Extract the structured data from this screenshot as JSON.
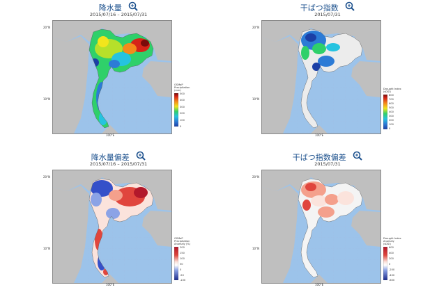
{
  "panels": [
    {
      "id": "rainfall",
      "title": "降水量",
      "date": "2015/07/16 – 2015/07/31",
      "colorbar": {
        "title": [
          "GSMaP",
          "Precipitation",
          "(mm)"
        ],
        "ticks": [
          "0",
          "100",
          "200",
          "300",
          "400",
          "500"
        ],
        "colors": [
          "#1b3fa6",
          "#2c7bd6",
          "#25c3e0",
          "#2fd06a",
          "#b6e02a",
          "#f2e51c",
          "#f58a1a",
          "#d62418",
          "#7a0b0b"
        ]
      },
      "lat_labels": [
        "20°N",
        "10°N"
      ],
      "lon_label": "100°E"
    },
    {
      "id": "drought",
      "title": "干ばつ指数",
      "date": "2015/07/31",
      "colorbar": {
        "title": [
          "Drought Index",
          "(sDSI)"
        ],
        "ticks": [
          "0",
          "100",
          "200",
          "300",
          "400",
          "500",
          "600",
          "700",
          "800"
        ],
        "colors": [
          "#1b3fa6",
          "#2c7bd6",
          "#25c3e0",
          "#2fd06a",
          "#b6e02a",
          "#f2e51c",
          "#f58a1a",
          "#d62418",
          "#7a0b0b"
        ]
      },
      "lat_labels": [
        "20°N",
        "10°N"
      ],
      "lon_label": "100°E"
    },
    {
      "id": "rainfall-anomaly",
      "title": "降水量偏差",
      "date": "2015/07/16 – 2015/07/31",
      "colorbar": {
        "title": [
          "GSMaP",
          "Precipitation",
          "Anomaly (%)"
        ],
        "ticks": [
          "200",
          "150",
          "100",
          "50",
          "0",
          "-50",
          "-100"
        ],
        "colors": [
          "#b2182b",
          "#e0453d",
          "#f4a08c",
          "#fbe3dc",
          "#ffffff",
          "#d6def5",
          "#8ca3e6",
          "#3550c9",
          "#1a2a8c"
        ]
      },
      "lat_labels": [
        "20°N",
        "10°N"
      ],
      "lon_label": "100°E"
    },
    {
      "id": "drought-anomaly",
      "title": "干ばつ指数偏差",
      "date": "2015/07/31",
      "colorbar": {
        "title": [
          "Drought Index",
          "Anomaly",
          "(sDSI)"
        ],
        "ticks": [
          "600",
          "400",
          "200",
          "0",
          "-200",
          "-400",
          "-600"
        ],
        "colors": [
          "#b2182b",
          "#e0453d",
          "#f4a08c",
          "#fbe3dc",
          "#ffffff",
          "#d6def5",
          "#8ca3e6",
          "#3550c9",
          "#1a2a8c"
        ]
      },
      "lat_labels": [
        "20°N",
        "10°N"
      ],
      "lon_label": "100°E"
    }
  ]
}
